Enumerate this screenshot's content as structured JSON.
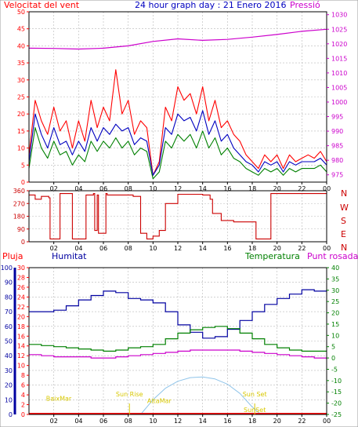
{
  "header": {
    "wind_title": "Velocitat del vent",
    "main_title": "24 hour graph day : 21 Enero 2016",
    "pressure_title": "Pressió"
  },
  "direction_letters": [
    "N",
    "W",
    "S",
    "E",
    "N"
  ],
  "bottom_labels": {
    "rain": "Pluja",
    "humidity": "Humitat",
    "temperature": "Temperatura",
    "dewpoint": "Punt rosada"
  },
  "colors": {
    "wind_gust": "#ff0000",
    "wind_avg": "#0000c0",
    "wind_low": "#008000",
    "pressure": "#cc00cc",
    "direction": "#cc0000",
    "humidity": "#0000a0",
    "temperature": "#008000",
    "dewpoint": "#cc00cc",
    "sun_curve": "#8fc4ea",
    "sun_text": "#d8c800",
    "rain": "#ff0000"
  },
  "chart_data": [
    {
      "type": "line",
      "panel": "wind_pressure",
      "x_ticks": [
        "02",
        "04",
        "06",
        "08",
        "10",
        "12",
        "14",
        "16",
        "18",
        "20",
        "22",
        "00"
      ],
      "xlim": [
        0,
        24
      ],
      "y_left_ticks": [
        0,
        5,
        10,
        15,
        20,
        25,
        30,
        35,
        40,
        45,
        50
      ],
      "ylim_left": [
        0,
        50
      ],
      "y_right_ticks": [
        975,
        980,
        985,
        990,
        995,
        1000,
        1005,
        1010,
        1015,
        1020,
        1025,
        1030
      ],
      "ylim_right": [
        972.5,
        1031
      ],
      "grid": true,
      "series": [
        {
          "axis": "left",
          "x": [
            0,
            0.5,
            1,
            1.5,
            2,
            2.5,
            3,
            3.5,
            4,
            4.5,
            5,
            5.5,
            6,
            6.5,
            7,
            7.5,
            8,
            8.5,
            9,
            9.5,
            10,
            10.5,
            11,
            11.5,
            12,
            12.5,
            13,
            13.5,
            14,
            14.5,
            15,
            15.5,
            16,
            16.5,
            17,
            17.5,
            18,
            18.5,
            19,
            19.5,
            20,
            20.5,
            21,
            21.5,
            22,
            22.5,
            23,
            23.5,
            24
          ],
          "values": [
            8,
            24,
            18,
            14,
            22,
            15,
            18,
            10,
            18,
            12,
            24,
            16,
            22,
            18,
            33,
            20,
            24,
            14,
            18,
            16,
            2,
            6,
            22,
            18,
            28,
            24,
            26,
            20,
            28,
            18,
            24,
            16,
            18,
            14,
            12,
            8,
            6,
            4,
            8,
            6,
            8,
            4,
            8,
            6,
            7,
            8,
            7,
            9,
            6
          ]
        },
        {
          "axis": "left",
          "x": [
            0,
            0.5,
            1,
            1.5,
            2,
            2.5,
            3,
            3.5,
            4,
            4.5,
            5,
            5.5,
            6,
            6.5,
            7,
            7.5,
            8,
            8.5,
            9,
            9.5,
            10,
            10.5,
            11,
            11.5,
            12,
            12.5,
            13,
            13.5,
            14,
            14.5,
            15,
            15.5,
            16,
            16.5,
            17,
            17.5,
            18,
            18.5,
            19,
            19.5,
            20,
            20.5,
            21,
            21.5,
            22,
            22.5,
            23,
            23.5,
            24
          ],
          "values": [
            6,
            20,
            14,
            10,
            16,
            11,
            12,
            8,
            12,
            9,
            16,
            12,
            16,
            14,
            17,
            15,
            16,
            11,
            13,
            12,
            2,
            5,
            16,
            14,
            20,
            18,
            19,
            15,
            21,
            14,
            18,
            12,
            14,
            10,
            8,
            6,
            5,
            3,
            6,
            5,
            6,
            3,
            6,
            5,
            6,
            6,
            6,
            7,
            5
          ]
        },
        {
          "axis": "left",
          "x": [
            0,
            0.5,
            1,
            1.5,
            2,
            2.5,
            3,
            3.5,
            4,
            4.5,
            5,
            5.5,
            6,
            6.5,
            7,
            7.5,
            8,
            8.5,
            9,
            9.5,
            10,
            10.5,
            11,
            11.5,
            12,
            12.5,
            13,
            13.5,
            14,
            14.5,
            15,
            15.5,
            16,
            16.5,
            17,
            17.5,
            18,
            18.5,
            19,
            19.5,
            20,
            20.5,
            21,
            21.5,
            22,
            22.5,
            23,
            23.5,
            24
          ],
          "values": [
            4,
            16,
            10,
            7,
            12,
            8,
            9,
            5,
            8,
            6,
            12,
            9,
            12,
            10,
            13,
            10,
            12,
            8,
            10,
            9,
            1,
            3,
            12,
            10,
            14,
            12,
            14,
            10,
            15,
            10,
            13,
            8,
            10,
            7,
            6,
            4,
            3,
            2,
            4,
            3,
            4,
            2,
            4,
            3,
            4,
            4,
            4,
            5,
            3
          ]
        },
        {
          "axis": "right",
          "x": [
            0,
            2,
            4,
            6,
            8,
            10,
            12,
            14,
            16,
            18,
            20,
            22,
            24
          ],
          "values": [
            1018.5,
            1018.4,
            1018.2,
            1018.5,
            1019.3,
            1020.8,
            1021.7,
            1021.2,
            1021.5,
            1022.3,
            1023.2,
            1024.3,
            1025.0
          ]
        }
      ]
    },
    {
      "type": "line",
      "panel": "wind_direction",
      "x_ticks": [
        "02",
        "04",
        "06",
        "08",
        "10",
        "12",
        "14",
        "16",
        "18",
        "20",
        "22",
        "00"
      ],
      "xlim": [
        0,
        24
      ],
      "y_ticks": [
        0,
        90,
        180,
        270,
        360
      ],
      "ylim": [
        0,
        360
      ],
      "grid": true,
      "series": [
        {
          "x": [
            0,
            0.5,
            1,
            1.6,
            1.7,
            2.4,
            2.5,
            3.4,
            3.5,
            4.5,
            4.6,
            5.2,
            5.3,
            5.5,
            5.6,
            6.2,
            6.3,
            7.0,
            7.5,
            8.4,
            9.0,
            9.5,
            10.0,
            10.5,
            11.0,
            12.0,
            13.0,
            14.0,
            14.6,
            14.8,
            15.5,
            16.5,
            17.5,
            18.2,
            18.3,
            19.5,
            20.0,
            21.0,
            22.0,
            23.0,
            24.0
          ],
          "values": [
            330,
            300,
            320,
            310,
            20,
            20,
            340,
            340,
            20,
            20,
            330,
            340,
            80,
            330,
            60,
            340,
            330,
            330,
            330,
            320,
            60,
            20,
            40,
            80,
            270,
            335,
            335,
            330,
            300,
            200,
            150,
            140,
            140,
            140,
            20,
            340,
            340,
            340,
            340,
            340,
            340
          ]
        }
      ]
    },
    {
      "type": "line",
      "panel": "humidity_temperature",
      "x_ticks": [
        "02",
        "04",
        "06",
        "08",
        "10",
        "12",
        "14",
        "16",
        "18",
        "20",
        "22",
        "00"
      ],
      "xlim": [
        0,
        24
      ],
      "y_humidity_ticks": [
        0,
        10,
        20,
        30,
        40,
        50,
        60,
        70,
        80,
        90,
        100
      ],
      "ylim_humidity": [
        0,
        100
      ],
      "y_rain_ticks": [
        0,
        2,
        4,
        6,
        8,
        10,
        12,
        14,
        16,
        18,
        20,
        22,
        24,
        26,
        28,
        30
      ],
      "ylim_rain": [
        0,
        30
      ],
      "y_temperature_ticks": [
        -25,
        -20,
        -15,
        -10,
        -5,
        0,
        5,
        10,
        15,
        20,
        25,
        30,
        35,
        40
      ],
      "ylim_temperature": [
        -25,
        40
      ],
      "grid": true,
      "series": [
        {
          "axis": "humidity",
          "x": [
            0,
            1,
            2,
            3,
            4,
            5,
            6,
            7,
            8,
            9,
            10,
            11,
            12,
            13,
            14,
            15,
            16,
            17,
            18,
            19,
            20,
            21,
            22,
            23,
            24
          ],
          "values": [
            70,
            70,
            71,
            74,
            78,
            81,
            84,
            83,
            79,
            78,
            76,
            70,
            61,
            56,
            52,
            53,
            58,
            64,
            70,
            75,
            79,
            82,
            85,
            84,
            85
          ]
        },
        {
          "axis": "temperature",
          "x": [
            0,
            1,
            2,
            3,
            4,
            5,
            6,
            7,
            8,
            9,
            10,
            11,
            12,
            13,
            14,
            15,
            16,
            17,
            18,
            19,
            20,
            21,
            22,
            23,
            24
          ],
          "values": [
            6,
            5.5,
            5,
            4.5,
            4,
            3.5,
            3,
            3.5,
            4.5,
            5,
            6,
            8.5,
            11,
            12.5,
            13.5,
            14,
            13,
            11,
            8.5,
            6,
            4.5,
            3.5,
            3,
            3,
            3
          ]
        },
        {
          "axis": "temperature",
          "x": [
            0,
            1,
            2,
            3,
            4,
            5,
            6,
            7,
            8,
            9,
            10,
            11,
            12,
            13,
            14,
            15,
            16,
            17,
            18,
            19,
            20,
            21,
            22,
            23,
            24
          ],
          "values": [
            1.5,
            1,
            0.5,
            0.5,
            0.5,
            0,
            0,
            0.5,
            1,
            1.5,
            2,
            2.5,
            3,
            3.5,
            3.5,
            3.5,
            3.5,
            3,
            2.5,
            2,
            1.5,
            1,
            0.5,
            0,
            -0.5
          ]
        },
        {
          "axis": "temperature",
          "x": [
            9.0,
            10,
            11,
            12,
            13,
            14,
            15,
            16,
            17,
            18,
            18.7
          ],
          "values": [
            -25,
            -18.5,
            -13.4,
            -10.3,
            -8.7,
            -8.4,
            -9.3,
            -11.6,
            -15.7,
            -21.7,
            -25
          ]
        }
      ],
      "annotations": [
        {
          "text": "BaixMar",
          "x": 2.4,
          "y": -19
        },
        {
          "text": "Sun Rise",
          "x": 8.1,
          "y": -17
        },
        {
          "text": "AltaMar",
          "x": 10.5,
          "y": -20
        },
        {
          "text": "Sun Set",
          "x": 18.2,
          "y": -17
        },
        {
          "text": "SunSet",
          "x": 18.2,
          "y": -24
        }
      ]
    }
  ]
}
